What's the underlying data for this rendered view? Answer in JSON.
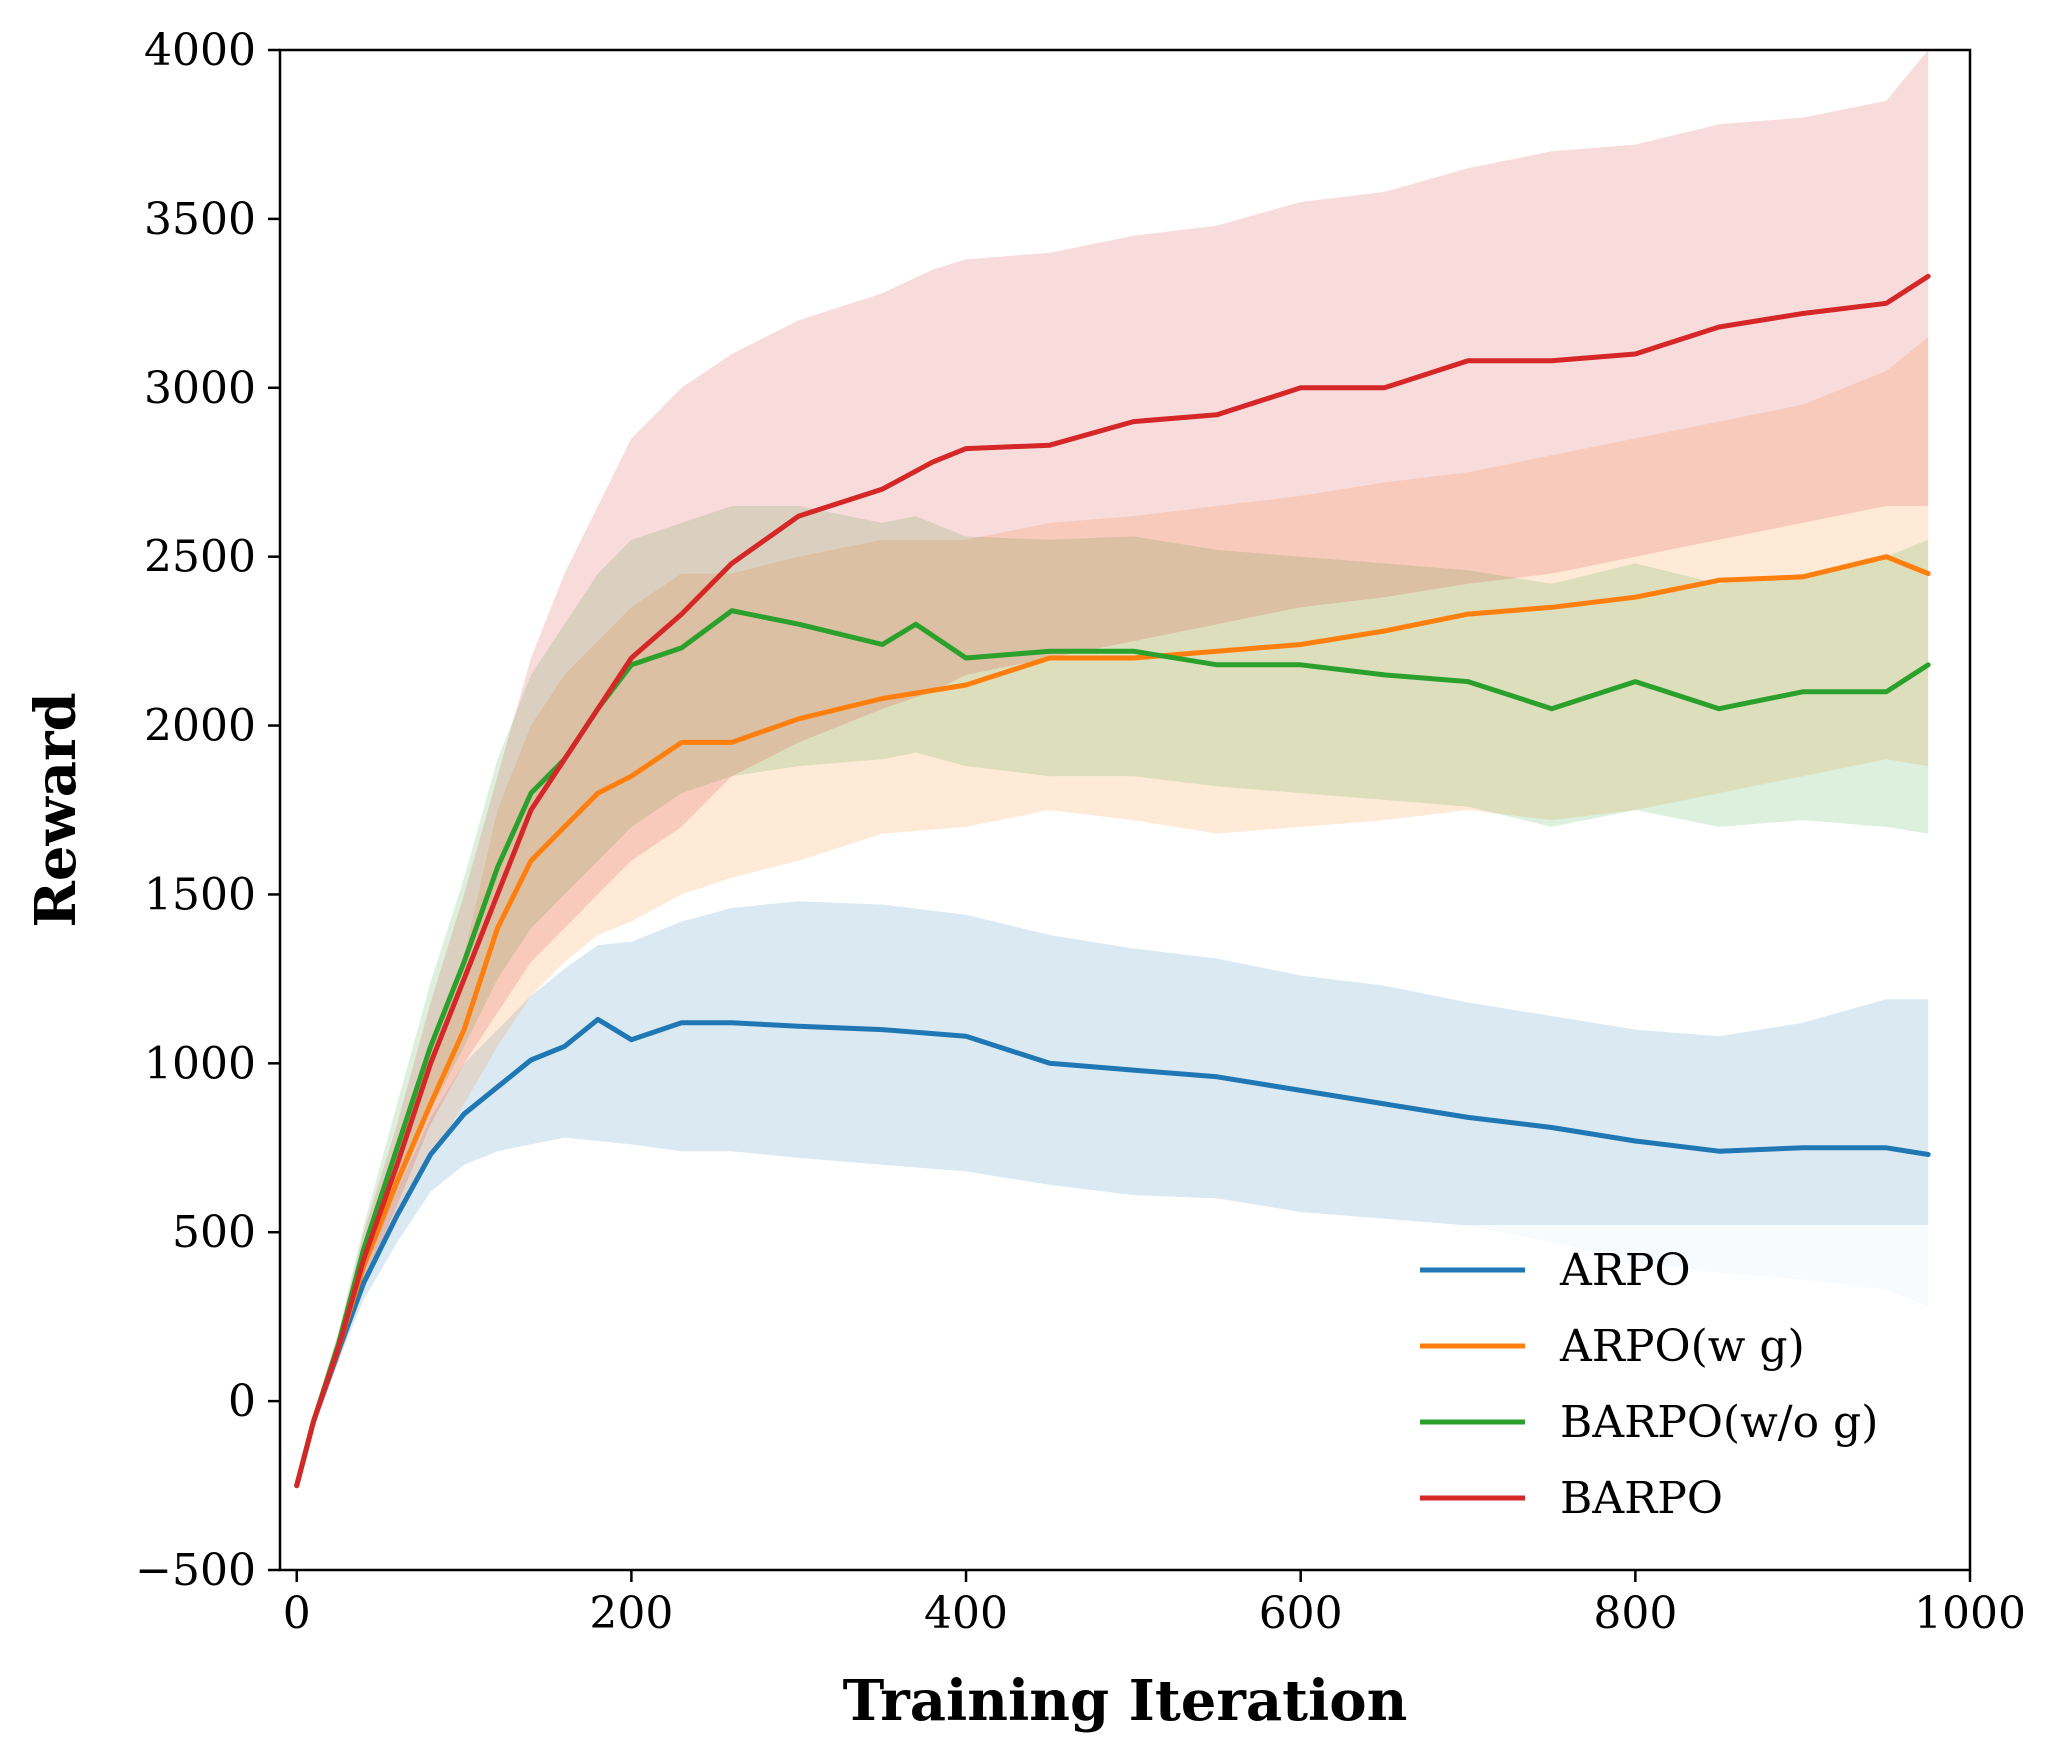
{
  "chart_data": {
    "type": "line",
    "title": "",
    "xlabel": "Training Iteration",
    "ylabel": "Reward",
    "xlim": [
      -10,
      1000
    ],
    "ylim": [
      -500,
      4000
    ],
    "xticks": [
      0,
      200,
      400,
      600,
      800,
      1000
    ],
    "yticks": [
      -500,
      0,
      500,
      1000,
      1500,
      2000,
      2500,
      3000,
      3500,
      4000
    ],
    "xtick_labels": [
      "0",
      "200",
      "400",
      "600",
      "800",
      "1000"
    ],
    "ytick_labels": [
      "−500",
      "0",
      "500",
      "1000",
      "1500",
      "2000",
      "2500",
      "3000",
      "3500",
      "4000"
    ],
    "grid": false,
    "legend_position": "lower-right",
    "series": [
      {
        "name": "ARPO",
        "color": "#1f77b4",
        "x": [
          0,
          10,
          25,
          40,
          60,
          80,
          100,
          120,
          140,
          160,
          180,
          200,
          230,
          260,
          300,
          350,
          400,
          450,
          500,
          550,
          600,
          650,
          700,
          750,
          800,
          850,
          900,
          950,
          975
        ],
        "mean": [
          -250,
          -60,
          150,
          350,
          550,
          730,
          850,
          930,
          1010,
          1050,
          1130,
          1070,
          1120,
          1120,
          1110,
          1100,
          1080,
          1000,
          980,
          960,
          920,
          880,
          840,
          810,
          770,
          740,
          750,
          750,
          730
        ],
        "lower": [
          -260,
          -80,
          120,
          300,
          470,
          620,
          700,
          740,
          760,
          780,
          770,
          760,
          740,
          740,
          720,
          700,
          680,
          640,
          610,
          600,
          560,
          540,
          520,
          470,
          410,
          380,
          360,
          330,
          280
        ],
        "upper": [
          -240,
          -40,
          180,
          400,
          620,
          840,
          1000,
          1100,
          1200,
          1280,
          1350,
          1360,
          1420,
          1460,
          1480,
          1470,
          1440,
          1380,
          1340,
          1310,
          1260,
          1230,
          1180,
          1140,
          1100,
          1080,
          1120,
          1190,
          1190
        ]
      },
      {
        "name": "ARPO(w g)",
        "color": "#ff7f0e",
        "x": [
          0,
          10,
          25,
          40,
          60,
          80,
          100,
          120,
          140,
          160,
          180,
          200,
          230,
          260,
          300,
          350,
          400,
          450,
          500,
          550,
          600,
          650,
          700,
          750,
          800,
          850,
          900,
          950,
          975
        ],
        "mean": [
          -250,
          -60,
          160,
          400,
          650,
          880,
          1100,
          1400,
          1600,
          1700,
          1800,
          1850,
          1950,
          1950,
          2020,
          2080,
          2120,
          2200,
          2200,
          2220,
          2240,
          2280,
          2330,
          2350,
          2380,
          2430,
          2440,
          2500,
          2450
        ],
        "lower": [
          -260,
          -80,
          120,
          330,
          550,
          720,
          880,
          1050,
          1200,
          1300,
          1380,
          1420,
          1500,
          1550,
          1600,
          1680,
          1700,
          1750,
          1720,
          1680,
          1700,
          1720,
          1750,
          1720,
          1750,
          1800,
          1850,
          1900,
          1880
        ],
        "upper": [
          -240,
          -40,
          200,
          470,
          750,
          1040,
          1320,
          1750,
          2000,
          2150,
          2250,
          2350,
          2450,
          2450,
          2500,
          2550,
          2550,
          2600,
          2620,
          2650,
          2680,
          2720,
          2750,
          2800,
          2850,
          2900,
          2950,
          3050,
          3150
        ]
      },
      {
        "name": "BARPO(w/o g)",
        "color": "#2ca02c",
        "x": [
          0,
          10,
          25,
          40,
          60,
          80,
          100,
          120,
          140,
          160,
          180,
          200,
          230,
          260,
          300,
          350,
          370,
          400,
          450,
          500,
          550,
          600,
          650,
          700,
          750,
          800,
          850,
          900,
          950,
          975
        ],
        "mean": [
          -250,
          -60,
          170,
          450,
          750,
          1050,
          1300,
          1580,
          1800,
          1900,
          2050,
          2180,
          2230,
          2340,
          2300,
          2240,
          2300,
          2200,
          2220,
          2220,
          2180,
          2180,
          2150,
          2130,
          2050,
          2130,
          2050,
          2100,
          2100,
          2180
        ],
        "lower": [
          -260,
          -80,
          130,
          380,
          620,
          860,
          1050,
          1250,
          1400,
          1500,
          1600,
          1700,
          1800,
          1850,
          1880,
          1900,
          1920,
          1880,
          1850,
          1850,
          1820,
          1800,
          1780,
          1760,
          1700,
          1750,
          1700,
          1720,
          1700,
          1680
        ],
        "upper": [
          -240,
          -40,
          210,
          520,
          880,
          1240,
          1550,
          1900,
          2150,
          2300,
          2450,
          2550,
          2600,
          2650,
          2650,
          2600,
          2620,
          2560,
          2550,
          2560,
          2520,
          2500,
          2480,
          2460,
          2420,
          2480,
          2420,
          2450,
          2500,
          2550
        ]
      },
      {
        "name": "BARPO",
        "color": "#d62728",
        "x": [
          0,
          10,
          25,
          40,
          60,
          80,
          100,
          120,
          140,
          160,
          180,
          200,
          230,
          260,
          300,
          350,
          380,
          400,
          450,
          500,
          550,
          600,
          650,
          700,
          750,
          800,
          850,
          900,
          950,
          975
        ],
        "mean": [
          -250,
          -60,
          160,
          420,
          700,
          1000,
          1250,
          1500,
          1750,
          1900,
          2050,
          2200,
          2330,
          2480,
          2620,
          2700,
          2780,
          2820,
          2830,
          2900,
          2920,
          3000,
          3000,
          3080,
          3080,
          3100,
          3180,
          3220,
          3250,
          3330
        ],
        "lower": [
          -260,
          -80,
          120,
          350,
          580,
          820,
          1000,
          1150,
          1300,
          1400,
          1500,
          1600,
          1700,
          1850,
          1950,
          2050,
          2100,
          2150,
          2200,
          2250,
          2300,
          2350,
          2380,
          2420,
          2450,
          2500,
          2550,
          2600,
          2650,
          2650
        ],
        "upper": [
          -240,
          -40,
          200,
          500,
          820,
          1180,
          1500,
          1850,
          2200,
          2450,
          2650,
          2850,
          3000,
          3100,
          3200,
          3280,
          3350,
          3380,
          3400,
          3450,
          3480,
          3550,
          3580,
          3650,
          3700,
          3720,
          3780,
          3800,
          3850,
          4000
        ]
      }
    ]
  }
}
